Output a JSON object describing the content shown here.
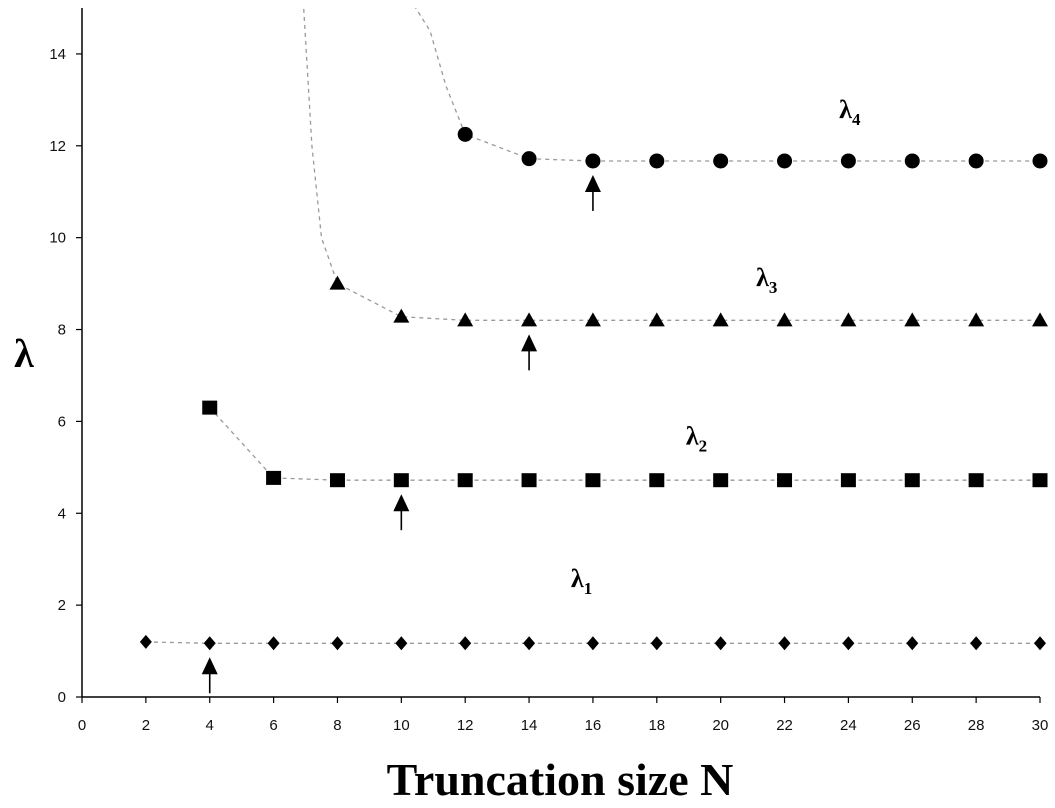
{
  "chart_data": {
    "type": "scatter",
    "title": "",
    "xlabel": "Truncation size N",
    "ylabel": "λ",
    "xlim": [
      0,
      30
    ],
    "ylim": [
      0,
      15
    ],
    "x_ticks": [
      0,
      2,
      4,
      6,
      8,
      10,
      12,
      14,
      16,
      18,
      20,
      22,
      24,
      26,
      28,
      30
    ],
    "y_ticks": [
      0,
      2,
      4,
      6,
      8,
      10,
      12,
      14
    ],
    "grid": false,
    "series": [
      {
        "name": "λ",
        "subscript": "1",
        "marker": "diamond",
        "x": [
          2,
          4,
          6,
          8,
          10,
          12,
          14,
          16,
          18,
          20,
          22,
          24,
          26,
          28,
          30
        ],
        "y": [
          1.2,
          1.17,
          1.17,
          1.17,
          1.17,
          1.17,
          1.17,
          1.17,
          1.17,
          1.17,
          1.17,
          1.17,
          1.17,
          1.17,
          1.17
        ],
        "arrow_at_x": 4
      },
      {
        "name": "λ",
        "subscript": "2",
        "marker": "square",
        "x": [
          4,
          6,
          8,
          10,
          12,
          14,
          16,
          18,
          20,
          22,
          24,
          26,
          28,
          30
        ],
        "y": [
          6.3,
          4.77,
          4.72,
          4.72,
          4.72,
          4.72,
          4.72,
          4.72,
          4.72,
          4.72,
          4.72,
          4.72,
          4.72,
          4.72
        ],
        "arrow_at_x": 10
      },
      {
        "name": "λ",
        "subscript": "3",
        "marker": "triangle",
        "x": [
          8,
          10,
          12,
          14,
          16,
          18,
          20,
          22,
          24,
          26,
          28,
          30
        ],
        "y": [
          9.0,
          8.28,
          8.2,
          8.2,
          8.2,
          8.2,
          8.2,
          8.2,
          8.2,
          8.2,
          8.2,
          8.2
        ],
        "arrow_at_x": 14
      },
      {
        "name": "λ",
        "subscript": "4",
        "marker": "circle",
        "x": [
          12,
          14,
          16,
          18,
          20,
          22,
          24,
          26,
          28,
          30
        ],
        "y": [
          12.25,
          11.72,
          11.67,
          11.67,
          11.67,
          11.67,
          11.67,
          11.67,
          11.67,
          11.67
        ],
        "arrow_at_x": 16
      }
    ]
  }
}
